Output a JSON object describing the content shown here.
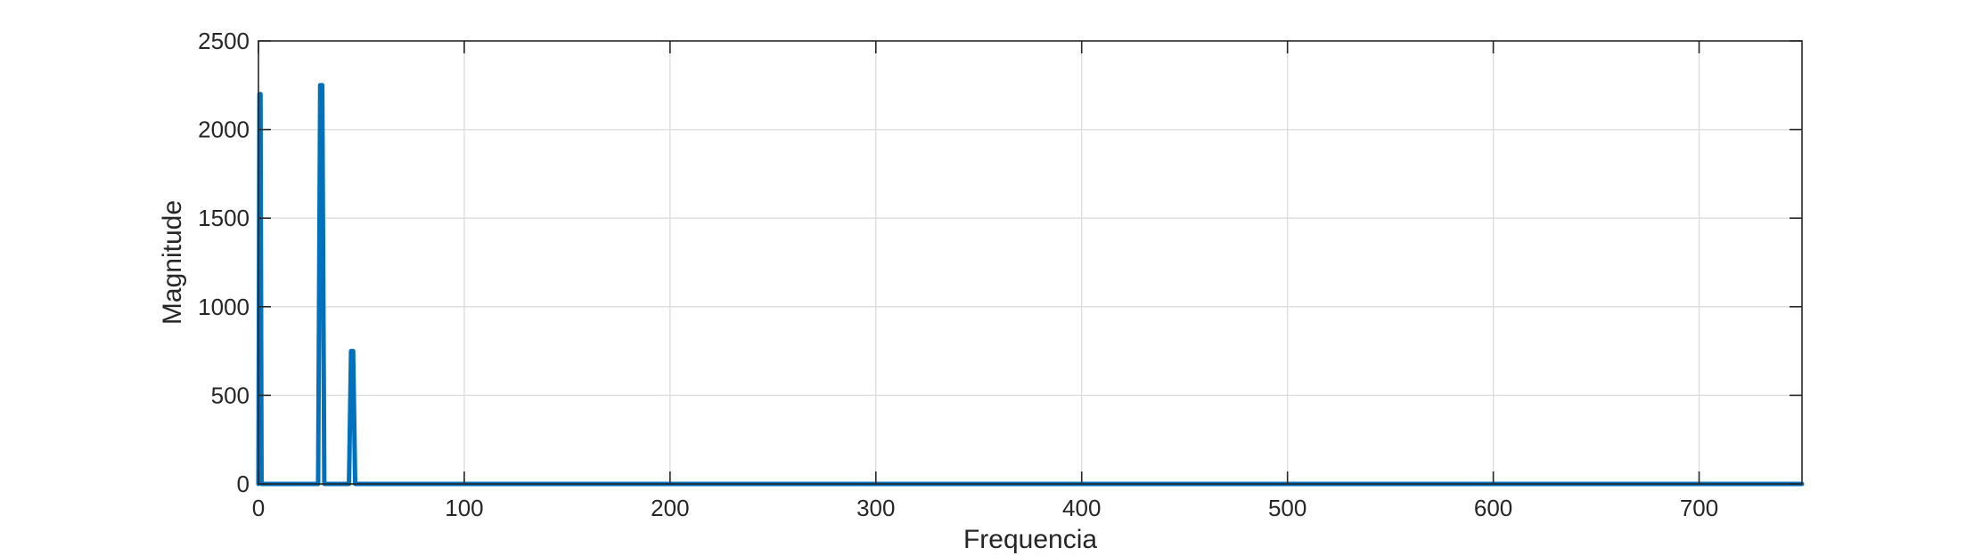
{
  "chart_data": {
    "type": "line",
    "title": "",
    "xlabel": "Frequencia",
    "ylabel": "Magnitude",
    "xlim": [
      0,
      750
    ],
    "ylim": [
      0,
      2500
    ],
    "xticks": [
      0,
      100,
      200,
      300,
      400,
      500,
      600,
      700
    ],
    "yticks": [
      0,
      500,
      1000,
      1500,
      2000,
      2500
    ],
    "xtick_labels": [
      "0",
      "100",
      "200",
      "300",
      "400",
      "500",
      "600",
      "700"
    ],
    "ytick_labels": [
      "0",
      "500",
      "1000",
      "1500",
      "2000",
      "2500"
    ],
    "grid": true,
    "legend": "none",
    "series": [
      {
        "color": "#0072BD",
        "x": [
          0,
          0.5,
          1,
          1.5,
          2,
          28,
          29,
          30,
          31,
          32,
          33,
          43,
          44,
          45,
          46,
          47,
          48,
          750
        ],
        "y": [
          0,
          2200,
          2200,
          0,
          0,
          0,
          0,
          2250,
          2250,
          0,
          0,
          0,
          0,
          750,
          750,
          0,
          0,
          0
        ]
      }
    ]
  }
}
